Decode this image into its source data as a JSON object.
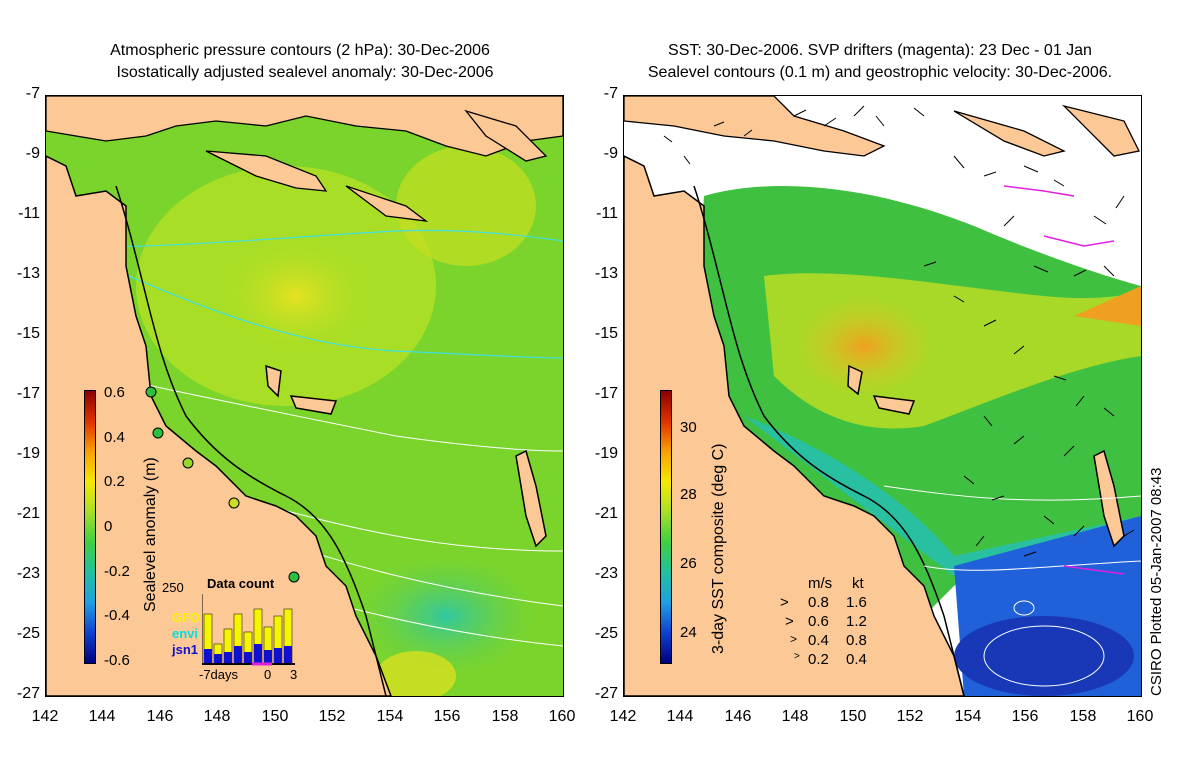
{
  "left_panel": {
    "title_line1": "Atmospheric pressure contours (2 hPa): 30-Dec-2006",
    "title_line2": "Isostatically adjusted sealevel anomaly: 30-Dec-2006",
    "colorbar": {
      "label": "Sealevel anomaly (m)",
      "ticks": [
        "0.6",
        "0.4",
        "0.2",
        "0",
        "-0.2",
        "-0.4",
        "-0.6"
      ]
    },
    "data_count": {
      "title": "Data count",
      "ymax_label": "250",
      "sources": [
        {
          "name": "GFO",
          "color": "#f5f500"
        },
        {
          "name": "envi",
          "color": "#00e0e0"
        },
        {
          "name": "jsn1",
          "color": "#1010d0"
        }
      ],
      "x_left": "-7days",
      "x_mid": "0",
      "x_right": "3"
    }
  },
  "right_panel": {
    "title_line1": "SST: 30-Dec-2006. SVP drifters (magenta): 23 Dec - 01 Jan",
    "title_line2": "Sealevel contours (0.1 m) and geostrophic velocity: 30-Dec-2006.",
    "colorbar": {
      "label": "3-day SST composite (deg C)",
      "ticks": [
        "30",
        "28",
        "26",
        "24"
      ]
    },
    "velocity_scale": {
      "header_ms": "m/s",
      "header_kt": "kt",
      "rows": [
        {
          "ms": "0.8",
          "kt": "1.6"
        },
        {
          "ms": "0.6",
          "kt": "1.2"
        },
        {
          "ms": "0.4",
          "kt": "0.8"
        },
        {
          "ms": "0.2",
          "kt": "0.4"
        }
      ]
    }
  },
  "axes": {
    "y_ticks": [
      "-7",
      "-9",
      "-11",
      "-13",
      "-15",
      "-17",
      "-19",
      "-21",
      "-23",
      "-25",
      "-27"
    ],
    "x_ticks": [
      "142",
      "144",
      "146",
      "148",
      "150",
      "152",
      "154",
      "156",
      "158",
      "160"
    ]
  },
  "credit": "CSIRO Plotted 05-Jan-2007 08:43",
  "colors": {
    "land": "#fcc896",
    "ocean_green": "#74d42a",
    "ocean_light": "#a6e028",
    "ocean_yellow": "#d4e61e",
    "cyan_contour": "#40e0e0",
    "white_contour": "#ffffff",
    "magenta": "#e020e0"
  }
}
